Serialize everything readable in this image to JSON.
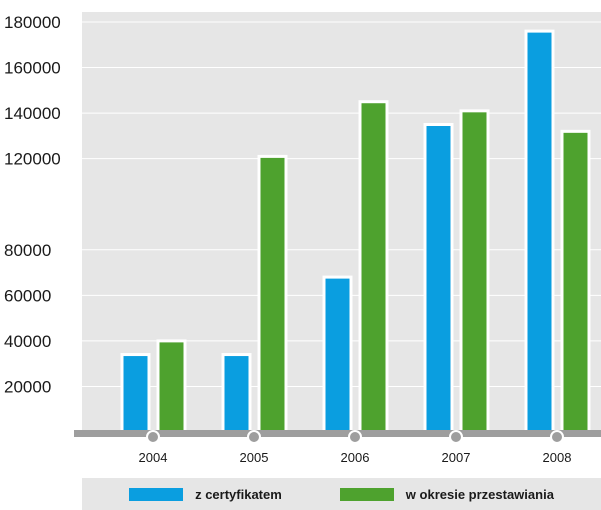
{
  "chart_data": {
    "type": "bar",
    "categories": [
      "2004",
      "2005",
      "2006",
      "2007",
      "2008"
    ],
    "series": [
      {
        "name": "z certyfikatem",
        "color": "#0a9ee0",
        "values": [
          34000,
          34000,
          68000,
          135000,
          176000
        ]
      },
      {
        "name": "w okresie przestawiania",
        "color": "#4ea22e",
        "values": [
          40000,
          121000,
          145000,
          141000,
          132000
        ]
      }
    ],
    "y_ticks": [
      "20000",
      "40000",
      "60000",
      "80000",
      "120000",
      "140000",
      "160000",
      "180000"
    ],
    "ylim": [
      0,
      180000
    ],
    "grid": true,
    "legend_position": "bottom",
    "title": "",
    "xlabel": "",
    "ylabel": ""
  }
}
